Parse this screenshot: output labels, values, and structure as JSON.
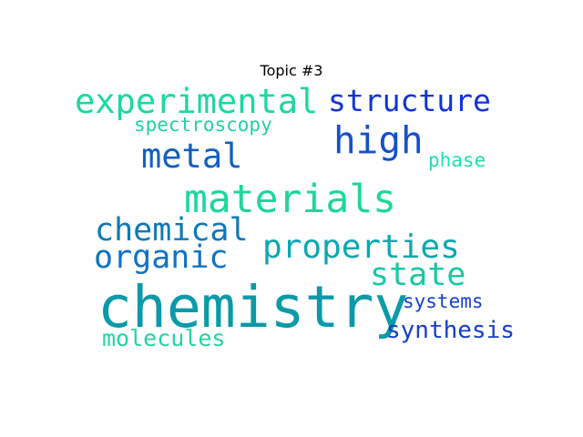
{
  "title": "Topic #3",
  "words": [
    {
      "id": "w-experimental",
      "text": "experimental",
      "color": "#1ad8a0"
    },
    {
      "id": "w-structure",
      "text": "structure",
      "color": "#1133d8"
    },
    {
      "id": "w-spectroscopy",
      "text": "spectroscopy",
      "color": "#22cfa5"
    },
    {
      "id": "w-high",
      "text": "high",
      "color": "#1650cc"
    },
    {
      "id": "w-metal",
      "text": "metal",
      "color": "#1160c0"
    },
    {
      "id": "w-phase",
      "text": "phase",
      "color": "#22e0b0"
    },
    {
      "id": "w-materials",
      "text": "materials",
      "color": "#1ed69c"
    },
    {
      "id": "w-chemical",
      "text": "chemical",
      "color": "#0d78b8"
    },
    {
      "id": "w-properties",
      "text": "properties",
      "color": "#0aa8b0"
    },
    {
      "id": "w-organic",
      "text": "organic",
      "color": "#0f72c4"
    },
    {
      "id": "w-state",
      "text": "state",
      "color": "#18c8a4"
    },
    {
      "id": "w-chemistry",
      "text": "chemistry",
      "color": "#0a9aa8"
    },
    {
      "id": "w-systems",
      "text": "systems",
      "color": "#1440d0"
    },
    {
      "id": "w-synthesis",
      "text": "synthesis",
      "color": "#1440c8"
    },
    {
      "id": "w-molecules",
      "text": "molecules",
      "color": "#22d4a2"
    }
  ]
}
